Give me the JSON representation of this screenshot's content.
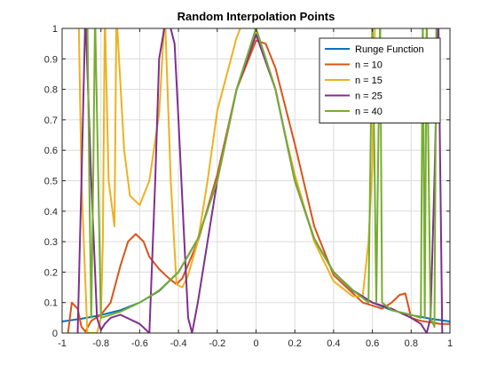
{
  "chart_data": {
    "type": "line",
    "title": "Random Interpolation Points",
    "xlabel": "",
    "ylabel": "",
    "xlim": [
      -1,
      1
    ],
    "ylim": [
      0,
      1
    ],
    "xticks": [
      -1,
      -0.8,
      -0.6,
      -0.4,
      -0.2,
      0,
      0.2,
      0.4,
      0.6,
      0.8,
      1
    ],
    "xtick_labels": [
      "-1",
      "-0.8",
      "-0.6",
      "-0.4",
      "-0.2",
      "0",
      "0.2",
      "0.4",
      "0.6",
      "0.8",
      "1"
    ],
    "yticks": [
      0,
      0.1,
      0.2,
      0.3,
      0.4,
      0.5,
      0.6,
      0.7,
      0.8,
      0.9,
      1
    ],
    "ytick_labels": [
      "0",
      "0.1",
      "0.2",
      "0.3",
      "0.4",
      "0.5",
      "0.6",
      "0.7",
      "0.8",
      "0.9",
      "1"
    ],
    "grid": true,
    "legend_position": "top-right",
    "series": [
      {
        "name": "Runge Function",
        "color": "#0072BD",
        "x": [
          -1,
          -0.9,
          -0.8,
          -0.7,
          -0.6,
          -0.5,
          -0.4,
          -0.3,
          -0.2,
          -0.1,
          0,
          0.1,
          0.2,
          0.3,
          0.4,
          0.5,
          0.6,
          0.7,
          0.8,
          0.9,
          1
        ],
        "y": [
          0.038,
          0.047,
          0.059,
          0.075,
          0.1,
          0.138,
          0.2,
          0.308,
          0.5,
          0.8,
          1,
          0.8,
          0.5,
          0.308,
          0.2,
          0.138,
          0.1,
          0.075,
          0.059,
          0.047,
          0.038
        ]
      },
      {
        "name": "n = 10",
        "color": "#D95319",
        "x": [
          -0.97,
          -0.95,
          -0.92,
          -0.9,
          -0.88,
          -0.85,
          -0.8,
          -0.75,
          -0.7,
          -0.66,
          -0.62,
          -0.58,
          -0.55,
          -0.5,
          -0.45,
          -0.41,
          -0.38,
          -0.3,
          -0.2,
          -0.1,
          0,
          0.05,
          0.1,
          0.2,
          0.3,
          0.4,
          0.5,
          0.55,
          0.6,
          0.65,
          0.7,
          0.74,
          0.77,
          0.8,
          0.85,
          0.9,
          0.95,
          1
        ],
        "y": [
          0.0,
          0.1,
          0.08,
          0.02,
          0.005,
          0.04,
          0.06,
          0.1,
          0.22,
          0.3,
          0.325,
          0.3,
          0.25,
          0.21,
          0.18,
          0.16,
          0.18,
          0.3,
          0.52,
          0.8,
          0.96,
          0.95,
          0.87,
          0.62,
          0.35,
          0.19,
          0.13,
          0.1,
          0.09,
          0.08,
          0.1,
          0.125,
          0.13,
          0.05,
          0.04,
          0.035,
          0.03,
          0.03
        ]
      },
      {
        "name": "n = 15",
        "color": "#EDB120",
        "x": [
          -0.915,
          -0.9,
          -0.87,
          -0.82,
          -0.8,
          -0.79,
          -0.78,
          -0.76,
          -0.73,
          -0.72,
          -0.68,
          -0.65,
          -0.6,
          -0.55,
          -0.5,
          -0.47,
          -0.44,
          -0.41,
          -0.38,
          -0.35,
          -0.3,
          -0.25,
          -0.2,
          -0.1,
          -0.05,
          0,
          0.05,
          0.1,
          0.15,
          0.2,
          0.3,
          0.4,
          0.5,
          0.55,
          0.58,
          0.6,
          0.605,
          0.615
        ],
        "y": [
          1.05,
          0.5,
          0.0,
          0.0,
          0.05,
          0.3,
          1.05,
          0.5,
          0.35,
          1.05,
          0.6,
          0.45,
          0.42,
          0.5,
          0.72,
          1.05,
          0.5,
          0.16,
          0.15,
          0.19,
          0.3,
          0.5,
          0.73,
          0.97,
          1.05,
          0.99,
          0.9,
          0.8,
          0.65,
          0.52,
          0.3,
          0.17,
          0.12,
          0.12,
          0.3,
          0.55,
          0.8,
          1.05
        ]
      },
      {
        "name": "n = 25",
        "color": "#7E2F8E",
        "x": [
          -0.92,
          -0.9,
          -0.88,
          -0.85,
          -0.82,
          -0.8,
          -0.78,
          -0.75,
          -0.7,
          -0.6,
          -0.55,
          -0.52,
          -0.5,
          -0.46,
          -0.42,
          -0.4,
          -0.37,
          -0.35,
          -0.33,
          -0.3,
          -0.2,
          -0.1,
          0,
          0.1,
          0.2,
          0.3,
          0.4,
          0.5,
          0.6,
          0.7,
          0.8,
          0.85,
          0.88,
          0.9,
          0.92,
          0.94,
          0.96
        ],
        "y": [
          0.0,
          0.5,
          1.05,
          0.5,
          0.05,
          0.01,
          0.03,
          0.05,
          0.06,
          0.03,
          0.0,
          0.5,
          0.9,
          1.05,
          0.95,
          0.7,
          0.3,
          0.05,
          0.0,
          0.1,
          0.5,
          0.8,
          0.98,
          0.8,
          0.5,
          0.31,
          0.2,
          0.14,
          0.1,
          0.08,
          0.05,
          0.03,
          0.0,
          0.05,
          0.5,
          1.05,
          0.0
        ]
      },
      {
        "name": "n = 40",
        "color": "#77AC30",
        "x": [
          -0.87,
          -0.86,
          -0.85,
          -0.84,
          -0.83,
          -0.8,
          -0.7,
          -0.6,
          -0.5,
          -0.4,
          -0.3,
          -0.2,
          -0.1,
          0,
          0.1,
          0.2,
          0.3,
          0.4,
          0.5,
          0.58,
          0.6,
          0.61,
          0.62,
          0.63,
          0.64,
          0.65,
          0.7,
          0.8,
          0.85,
          0.86,
          0.87,
          0.88,
          0.9,
          0.92,
          0.93
        ],
        "y": [
          1.05,
          0.5,
          0.05,
          0.5,
          1.05,
          0.05,
          0.07,
          0.1,
          0.14,
          0.2,
          0.31,
          0.5,
          0.8,
          1,
          0.8,
          0.5,
          0.31,
          0.2,
          0.14,
          0.1,
          1.05,
          0.6,
          0.1,
          0.6,
          1.05,
          0.1,
          0.075,
          0.06,
          0.05,
          1.05,
          0.05,
          1.05,
          0.05,
          0.02,
          1.05
        ]
      }
    ]
  }
}
